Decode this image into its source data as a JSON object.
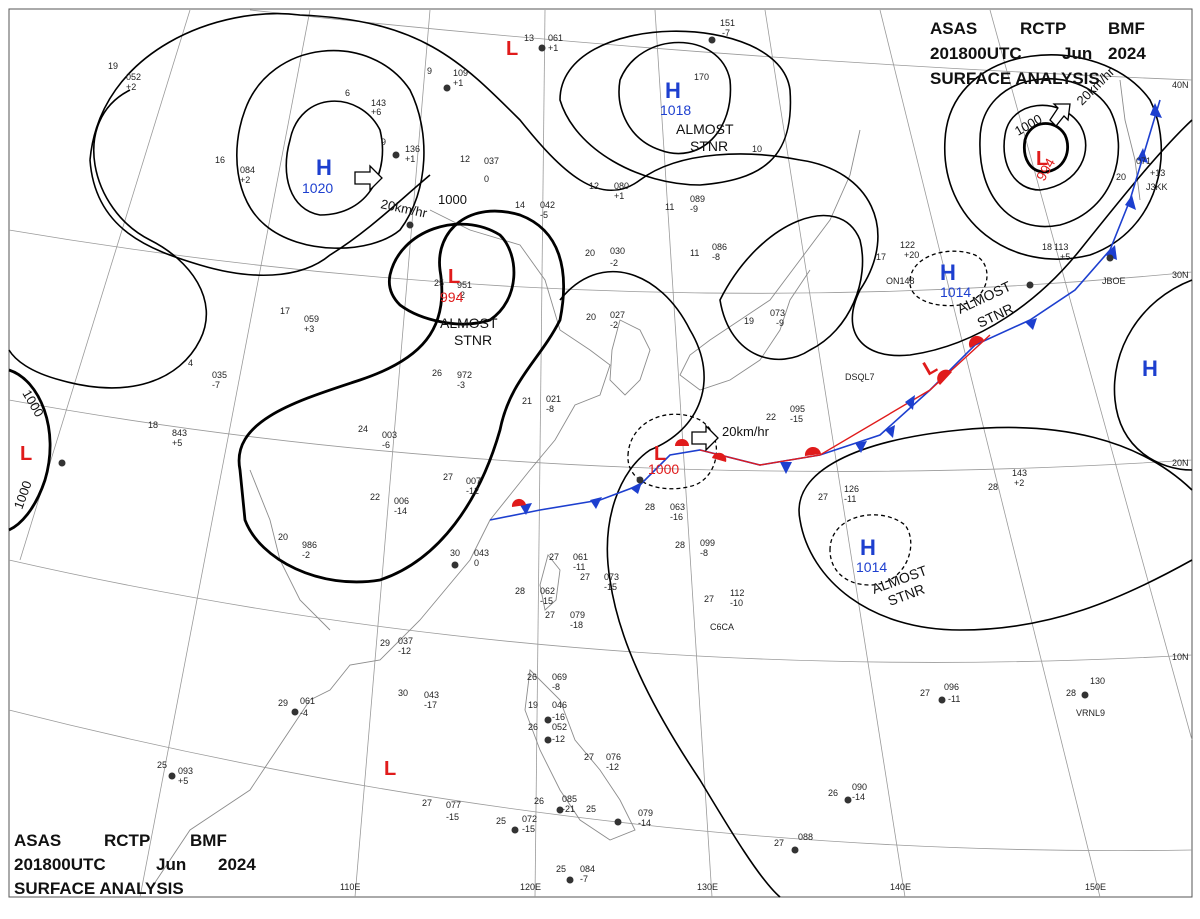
{
  "header": {
    "line1": [
      "ASAS",
      "RCTP",
      "BMF"
    ],
    "line2": [
      "201800UTC",
      "Jun",
      "2024"
    ],
    "line3": "SURFACE ANALYSIS"
  },
  "lat_labels": [
    "40N",
    "30N",
    "20N",
    "10N"
  ],
  "lon_labels": [
    "110E",
    "120E",
    "130E",
    "140E",
    "150E"
  ],
  "highs": [
    {
      "name": "high-mongolia",
      "letter": "H",
      "value": "1020"
    },
    {
      "name": "high-northeast-china",
      "letter": "H",
      "value": "1018"
    },
    {
      "name": "high-pacific-north",
      "letter": "H",
      "value": "1014"
    },
    {
      "name": "high-pacific-south",
      "letter": "H",
      "value": "1014"
    },
    {
      "name": "high-east-edge",
      "letter": "H",
      "value": ""
    }
  ],
  "lows": [
    {
      "name": "low-sichuan",
      "letter": "L",
      "value": "994"
    },
    {
      "name": "low-okhotsk",
      "letter": "L",
      "value": "994"
    },
    {
      "name": "low-ryukyu",
      "letter": "L",
      "value": "1000"
    },
    {
      "name": "low-north-top",
      "letter": "L",
      "value": ""
    },
    {
      "name": "low-west-edge",
      "letter": "L",
      "value": ""
    },
    {
      "name": "low-south-china-sea",
      "letter": "L",
      "value": ""
    },
    {
      "name": "low-front-pacific",
      "letter": "L",
      "value": ""
    }
  ],
  "stnr_labels": [
    [
      "ALMOST",
      "STNR"
    ],
    [
      "ALMOST",
      "STNR"
    ],
    [
      "ALMOST",
      "STNR"
    ],
    [
      "ALMOST",
      "STNR"
    ]
  ],
  "motions": [
    "20km/hr",
    "20km/hr",
    "20km/hr"
  ],
  "isobar_labels": [
    "1000",
    "1000",
    "1000",
    "1000"
  ],
  "colors": {
    "high": "#1d3fcf",
    "low": "#e01b1b",
    "cold_front": "#1d3fcf",
    "warm_front": "#e01b1b",
    "isobar": "#000000",
    "grid": "#9a9a9a"
  },
  "stations": [
    {
      "t": "13",
      "p": "061",
      "d": "+1"
    },
    {
      "t": "9",
      "p": "109",
      "d": "+1"
    },
    {
      "t": "6",
      "p": "143",
      "d": "+6"
    },
    {
      "t": "9",
      "p": "136",
      "d": "+1"
    },
    {
      "t": "16",
      "p": "084",
      "d": "+2"
    },
    {
      "t": "19",
      "p": "052",
      "d": "+2"
    },
    {
      "t": "12",
      "p": "037",
      "d": "0"
    },
    {
      "t": "12",
      "p": "080",
      "d": "+1"
    },
    {
      "t": "14",
      "p": "042",
      "d": "-5"
    },
    {
      "t": "11",
      "p": "089",
      "d": "-9"
    },
    {
      "t": "11",
      "p": "086",
      "d": "-8"
    },
    {
      "t": "20",
      "p": "030",
      "d": "-2"
    },
    {
      "t": "25",
      "p": "951",
      "d": "-2"
    },
    {
      "t": "20",
      "p": "027",
      "d": "-2"
    },
    {
      "t": "17",
      "p": "059",
      "d": "+3"
    },
    {
      "t": "4",
      "p": "035",
      "d": "-7"
    },
    {
      "t": "26",
      "p": "972",
      "d": "-3"
    },
    {
      "t": "21",
      "p": "021",
      "d": "-8"
    },
    {
      "t": "18",
      "p": "843",
      "d": "+5"
    },
    {
      "t": "24",
      "p": "003",
      "d": "-6"
    },
    {
      "t": "27",
      "p": "007",
      "d": "-12"
    },
    {
      "t": "22",
      "p": "006",
      "d": "-14"
    },
    {
      "t": "20",
      "p": "986",
      "d": "-2"
    },
    {
      "t": "30",
      "p": "043",
      "d": "0"
    },
    {
      "t": "27",
      "p": "061",
      "d": "-11"
    },
    {
      "t": "28",
      "p": "062",
      "d": "-15"
    },
    {
      "t": "27",
      "p": "073",
      "d": "-15"
    },
    {
      "t": "27",
      "p": "079",
      "d": "-18"
    },
    {
      "t": "28",
      "p": "063",
      "d": "-16"
    },
    {
      "t": "28",
      "p": "099",
      "d": "-8"
    },
    {
      "t": "27",
      "p": "112",
      "d": "-10"
    },
    {
      "t": "29",
      "p": "037",
      "d": "-12"
    },
    {
      "t": "30",
      "p": "043",
      "d": "-17"
    },
    {
      "t": "29",
      "p": "061",
      "d": "-4"
    },
    {
      "t": "25",
      "p": "093",
      "d": "+5"
    },
    {
      "t": "26",
      "p": "069",
      "d": "-8"
    },
    {
      "t": "19",
      "p": "046",
      "d": "-16"
    },
    {
      "t": "26",
      "p": "052",
      "d": "-12"
    },
    {
      "t": "27",
      "p": "076",
      "d": "-12"
    },
    {
      "t": "26",
      "p": "085",
      "d": "-21"
    },
    {
      "t": "25",
      "p": "072",
      "d": "-15"
    },
    {
      "t": "27",
      "p": "077",
      "d": "-15"
    },
    {
      "t": "25",
      "p": "079",
      "d": "-14"
    },
    {
      "t": "25",
      "p": "084",
      "d": "-7"
    },
    {
      "t": "27",
      "p": "096",
      "d": "-11"
    },
    {
      "t": "28",
      "p": "130",
      "d": ""
    },
    {
      "t": "26",
      "p": "090",
      "d": "-14"
    },
    {
      "t": "27",
      "p": "088",
      "d": ""
    },
    {
      "t": "28",
      "p": "143",
      "d": "+2"
    },
    {
      "t": "27",
      "p": "126",
      "d": "-11"
    },
    {
      "t": "22",
      "p": "095",
      "d": "-15"
    },
    {
      "t": "19",
      "p": "073",
      "d": "-9"
    },
    {
      "t": "17",
      "p": "122",
      "d": "+20"
    },
    {
      "t": "18",
      "p": "113",
      "d": "+5"
    },
    {
      "t": "20",
      "p": "071",
      "d": "+13"
    },
    {
      "t": "10",
      "p": "",
      "d": ""
    },
    {
      "t": "",
      "p": "151",
      "d": "-7"
    },
    {
      "t": "",
      "p": "170",
      "d": ""
    }
  ],
  "ship_codes": [
    "DSQL7",
    "C6CA",
    "VRNL9",
    "J3KK",
    "JBOE",
    "ON148"
  ]
}
